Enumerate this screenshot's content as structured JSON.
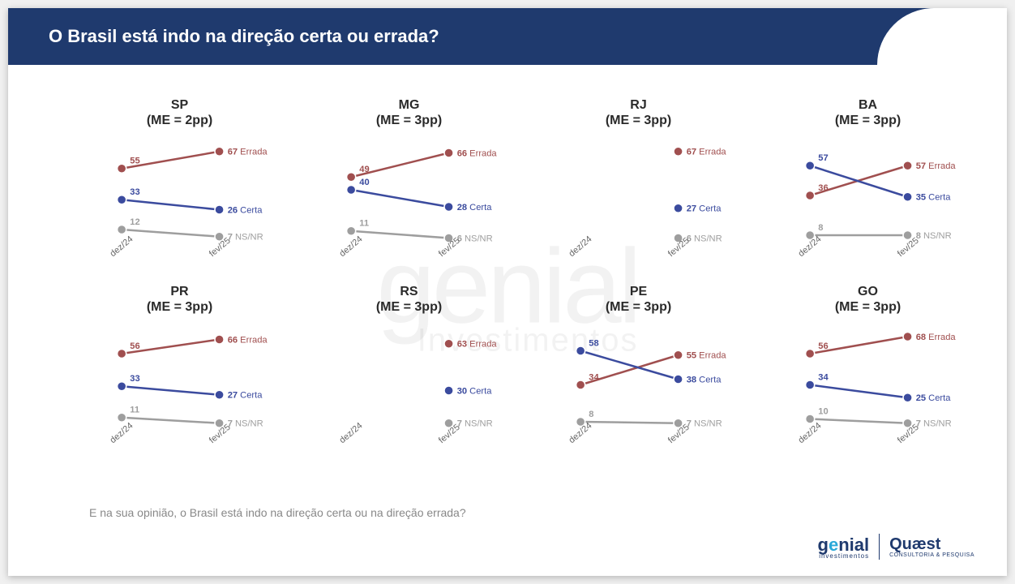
{
  "header_title": "O Brasil está indo na direção certa ou errada?",
  "footnote": "E na sua opinião, o Brasil está indo na direção certa ou na direção errada?",
  "watermark_main": "genial",
  "watermark_sub": "Investimentos",
  "logo_genial": "genial",
  "logo_genial_sub": "investimentos",
  "logo_quaest": "Quæst",
  "logo_quaest_sub": "CONSULTORIA & PESQUISA",
  "x_labels": [
    "dez/24",
    "fev/25"
  ],
  "x_positions_pct": [
    18,
    72
  ],
  "y_domain": [
    0,
    80
  ],
  "series_defs": {
    "errada": {
      "color": "#a04f4f",
      "end_label": "Errada"
    },
    "certa": {
      "color": "#3b4b9e",
      "end_label": "Certa"
    },
    "nsnr": {
      "color": "#9e9e9e",
      "end_label": "NS/NR"
    }
  },
  "point_radius": 5.5,
  "line_width": 2.5,
  "charts": [
    {
      "code": "SP",
      "me": "2pp",
      "series": {
        "errada": [
          55,
          67
        ],
        "certa": [
          33,
          26
        ],
        "nsnr": [
          12,
          7
        ]
      }
    },
    {
      "code": "MG",
      "me": "3pp",
      "series": {
        "errada": [
          49,
          66
        ],
        "certa": [
          40,
          28
        ],
        "nsnr": [
          11,
          6
        ]
      }
    },
    {
      "code": "RJ",
      "me": "3pp",
      "series": {
        "errada": [
          null,
          67
        ],
        "certa": [
          null,
          27
        ],
        "nsnr": [
          null,
          6
        ]
      }
    },
    {
      "code": "BA",
      "me": "3pp",
      "series": {
        "errada": [
          36,
          57
        ],
        "certa": [
          57,
          35
        ],
        "nsnr": [
          8,
          8
        ]
      }
    },
    {
      "code": "PR",
      "me": "3pp",
      "series": {
        "errada": [
          56,
          66
        ],
        "certa": [
          33,
          27
        ],
        "nsnr": [
          11,
          7
        ]
      }
    },
    {
      "code": "RS",
      "me": "3pp",
      "series": {
        "errada": [
          null,
          63
        ],
        "certa": [
          null,
          30
        ],
        "nsnr": [
          null,
          7
        ]
      }
    },
    {
      "code": "PE",
      "me": "3pp",
      "series": {
        "errada": [
          34,
          55
        ],
        "certa": [
          58,
          38
        ],
        "nsnr": [
          8,
          7
        ]
      }
    },
    {
      "code": "GO",
      "me": "3pp",
      "series": {
        "errada": [
          56,
          68
        ],
        "certa": [
          34,
          25
        ],
        "nsnr": [
          10,
          7
        ]
      }
    }
  ]
}
